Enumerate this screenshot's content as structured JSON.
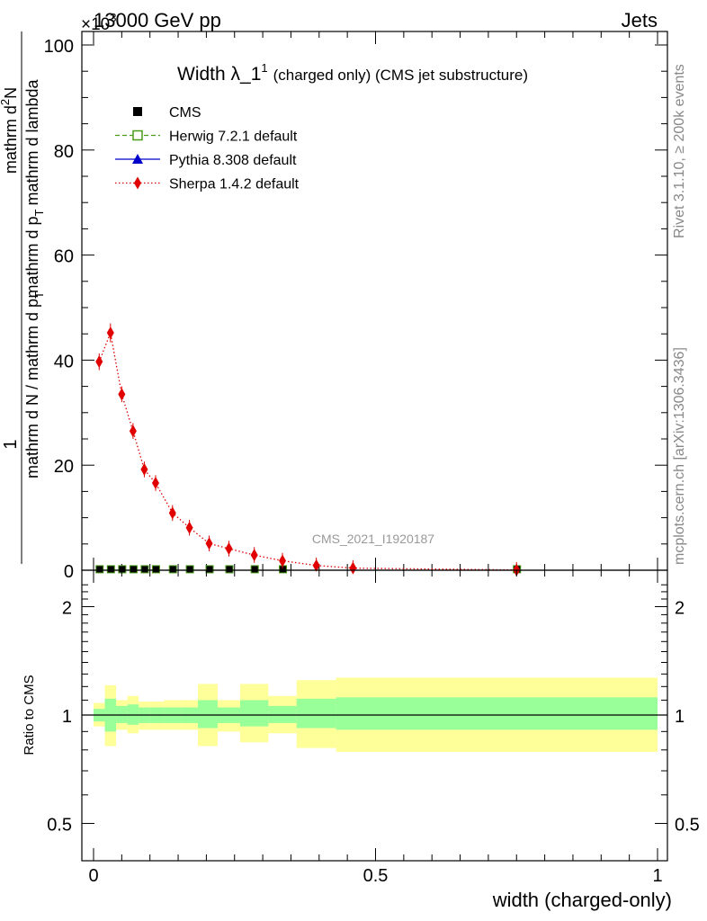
{
  "header": {
    "left": "13000 GeV pp",
    "right": "Jets",
    "multiplier": "×10",
    "multiplier_exp": "3"
  },
  "side_text": {
    "top": "Rivet 3.1.10, ≥ 200k events",
    "bottom": "mcplots.cern.ch [arXiv:1306.3436]"
  },
  "watermark": "CMS_2021_I1920187",
  "title": {
    "main": "Width λ_1",
    "sup": "1",
    "rest": "(charged only) (CMS jet substructure)"
  },
  "ylabel_main": {
    "numerator": "1",
    "denominator": "mathrm d N / mathrm d p",
    "sub": "T",
    "numerator2": "mathrm d",
    "numerator2_sup": "2",
    "numerator2_rest": "N",
    "denominator2": "mathrm d p",
    "denominator2_sub": "T",
    "denominator2_rest": "mathrm d lambda"
  },
  "ylabel_ratio": "Ratio to CMS",
  "xlabel": "width (charged-only)",
  "legend": [
    {
      "label": "CMS",
      "color": "#000000",
      "marker": "square-filled",
      "line": "none"
    },
    {
      "label": "Herwig 7.2.1 default",
      "color": "#4a9a1a",
      "marker": "square-open",
      "line": "dashed"
    },
    {
      "label": "Pythia 8.308 default",
      "color": "#0000cc",
      "marker": "triangle",
      "line": "solid"
    },
    {
      "label": "Sherpa 1.4.2 default",
      "color": "#e00000",
      "marker": "diamond",
      "line": "dotted"
    }
  ],
  "chart_data": [
    {
      "type": "line",
      "panel": "main",
      "xlim": [
        -0.02,
        1.02
      ],
      "ylim": [
        0,
        100
      ],
      "y_multiplier": "10^3",
      "yticks": [
        0,
        20,
        40,
        60,
        80,
        100
      ],
      "ytick_labels": [
        "0",
        "20",
        "40",
        "60",
        "80",
        "100"
      ],
      "series": [
        {
          "name": "Sherpa 1.4.2 default",
          "color": "#e00000",
          "x": [
            0.01,
            0.03,
            0.05,
            0.07,
            0.09,
            0.11,
            0.14,
            0.17,
            0.205,
            0.24,
            0.285,
            0.335,
            0.395,
            0.46,
            0.75
          ],
          "y": [
            39.7,
            45.2,
            33.5,
            26.5,
            19.2,
            16.6,
            10.9,
            8.1,
            5.1,
            4.1,
            2.9,
            1.8,
            0.9,
            0.4,
            0.05
          ]
        },
        {
          "name": "CMS",
          "color": "#000000",
          "x": [
            0.01,
            0.03,
            0.05,
            0.07,
            0.09,
            0.11,
            0.14,
            0.17,
            0.205,
            0.24,
            0.285,
            0.335,
            0.75
          ],
          "y": [
            0.1,
            0.1,
            0.1,
            0.1,
            0.1,
            0.1,
            0.1,
            0.1,
            0.1,
            0.1,
            0.1,
            0.1,
            0.1
          ]
        }
      ]
    },
    {
      "type": "area",
      "panel": "ratio",
      "xlim": [
        -0.02,
        1.02
      ],
      "ylim": [
        0.45,
        2.35
      ],
      "yticks": [
        0.5,
        1,
        2
      ],
      "ytick_labels": [
        "0.5",
        "1",
        "2"
      ],
      "xticks": [
        0,
        0.5,
        1
      ],
      "xtick_labels": [
        "0",
        "0.5",
        "1"
      ],
      "reference_line": 1,
      "bins": [
        {
          "x0": 0.0,
          "x1": 0.02,
          "inner": [
            0.96,
            1.04
          ],
          "outer": [
            0.93,
            1.08
          ]
        },
        {
          "x0": 0.02,
          "x1": 0.04,
          "inner": [
            0.9,
            1.11
          ],
          "outer": [
            0.82,
            1.21
          ]
        },
        {
          "x0": 0.04,
          "x1": 0.06,
          "inner": [
            0.95,
            1.06
          ],
          "outer": [
            0.91,
            1.1
          ]
        },
        {
          "x0": 0.06,
          "x1": 0.08,
          "inner": [
            0.94,
            1.07
          ],
          "outer": [
            0.89,
            1.13
          ]
        },
        {
          "x0": 0.08,
          "x1": 0.1,
          "inner": [
            0.95,
            1.05
          ],
          "outer": [
            0.91,
            1.09
          ]
        },
        {
          "x0": 0.1,
          "x1": 0.125,
          "inner": [
            0.95,
            1.05
          ],
          "outer": [
            0.91,
            1.09
          ]
        },
        {
          "x0": 0.125,
          "x1": 0.155,
          "inner": [
            0.95,
            1.05
          ],
          "outer": [
            0.91,
            1.1
          ]
        },
        {
          "x0": 0.155,
          "x1": 0.185,
          "inner": [
            0.95,
            1.05
          ],
          "outer": [
            0.91,
            1.1
          ]
        },
        {
          "x0": 0.185,
          "x1": 0.22,
          "inner": [
            0.92,
            1.1
          ],
          "outer": [
            0.82,
            1.22
          ]
        },
        {
          "x0": 0.22,
          "x1": 0.26,
          "inner": [
            0.95,
            1.05
          ],
          "outer": [
            0.9,
            1.1
          ]
        },
        {
          "x0": 0.26,
          "x1": 0.31,
          "inner": [
            0.93,
            1.1
          ],
          "outer": [
            0.84,
            1.22
          ]
        },
        {
          "x0": 0.31,
          "x1": 0.36,
          "inner": [
            0.95,
            1.06
          ],
          "outer": [
            0.89,
            1.13
          ]
        },
        {
          "x0": 0.36,
          "x1": 0.43,
          "inner": [
            0.92,
            1.11
          ],
          "outer": [
            0.81,
            1.25
          ]
        },
        {
          "x0": 0.43,
          "x1": 1.0,
          "inner": [
            0.91,
            1.12
          ],
          "outer": [
            0.79,
            1.27
          ]
        }
      ]
    }
  ]
}
